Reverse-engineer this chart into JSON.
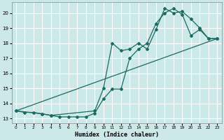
{
  "xlabel": "Humidex (Indice chaleur)",
  "bg_color": "#cce8e8",
  "grid_color": "#ffffff",
  "line_color": "#1a6b60",
  "xlim": [
    -0.5,
    23.5
  ],
  "ylim": [
    12.7,
    20.7
  ],
  "xticks": [
    0,
    1,
    2,
    3,
    4,
    5,
    6,
    7,
    8,
    9,
    10,
    11,
    12,
    13,
    14,
    15,
    16,
    17,
    18,
    19,
    20,
    21,
    22,
    23
  ],
  "yticks": [
    13,
    14,
    15,
    16,
    17,
    18,
    19,
    20
  ],
  "line1_x": [
    0,
    1,
    2,
    3,
    4,
    5,
    6,
    7,
    8,
    9,
    10,
    11,
    12,
    13,
    14,
    15,
    16,
    17,
    18,
    19,
    20,
    21,
    22,
    23
  ],
  "line1_y": [
    13.5,
    13.4,
    13.4,
    13.3,
    13.2,
    13.1,
    13.1,
    13.1,
    13.1,
    13.35,
    14.3,
    14.95,
    14.95,
    17.0,
    17.6,
    18.0,
    19.3,
    20.0,
    20.3,
    19.9,
    18.5,
    18.9,
    18.3,
    18.3
  ],
  "line2_x": [
    0,
    3,
    4,
    9,
    10,
    11,
    12,
    13,
    14,
    15,
    16,
    17,
    18,
    19,
    20,
    21,
    22,
    23
  ],
  "line2_y": [
    13.5,
    13.3,
    13.2,
    13.5,
    15.0,
    18.0,
    17.5,
    17.6,
    18.0,
    17.6,
    18.9,
    20.3,
    20.0,
    20.1,
    19.6,
    19.0,
    18.3,
    18.3
  ],
  "line3_x": [
    0,
    23
  ],
  "line3_y": [
    13.5,
    18.3
  ]
}
